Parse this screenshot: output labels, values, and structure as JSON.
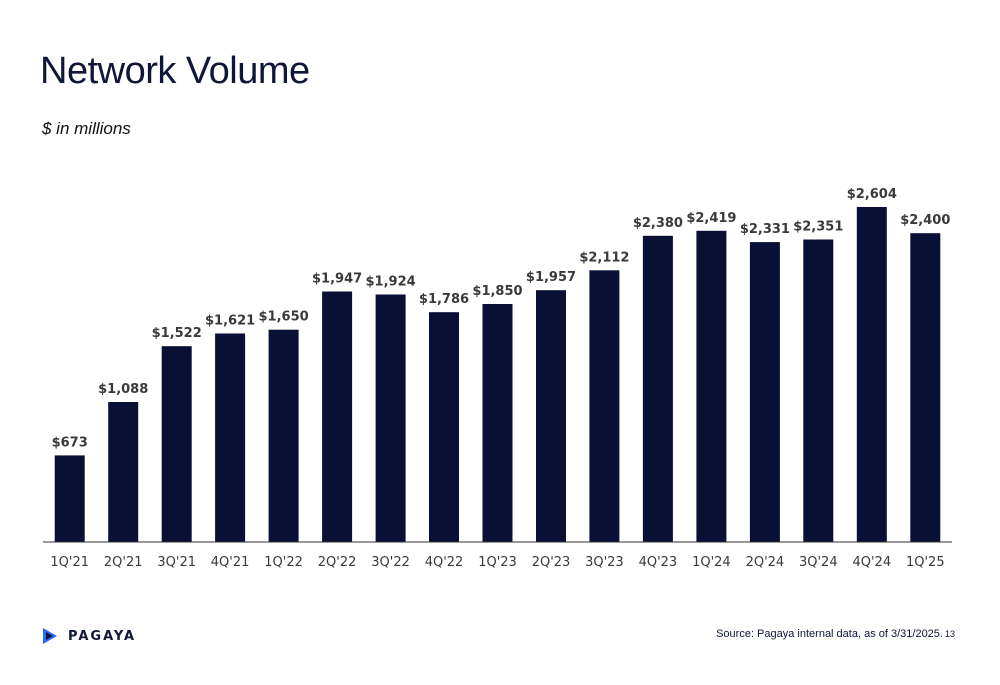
{
  "slide": {
    "title": "Network Volume",
    "subtitle": "$ in millions",
    "source": "Source: Pagaya internal data, as of 3/31/2025.",
    "page_number": "13",
    "logo_text": "PAGAYA"
  },
  "colors": {
    "bar": "#0a0f36",
    "axis": "#333333",
    "logo_accent": "#2a6cf6"
  },
  "chart_data": {
    "type": "bar",
    "title": "Network Volume",
    "ylabel": "$ in millions",
    "categories": [
      "1Q'21",
      "2Q'21",
      "3Q'21",
      "4Q'21",
      "1Q'22",
      "2Q'22",
      "3Q'22",
      "4Q'22",
      "1Q'23",
      "2Q'23",
      "3Q'23",
      "4Q'23",
      "1Q'24",
      "2Q'24",
      "3Q'24",
      "4Q'24",
      "1Q'25"
    ],
    "values": [
      673,
      1088,
      1522,
      1621,
      1650,
      1947,
      1924,
      1786,
      1850,
      1957,
      2112,
      2380,
      2419,
      2331,
      2351,
      2604,
      2400
    ],
    "labels": [
      "$673",
      "$1,088",
      "$1,522",
      "$1,621",
      "$1,650",
      "$1,947",
      "$1,924",
      "$1,786",
      "$1,850",
      "$1,957",
      "$2,112",
      "$2,380",
      "$2,419",
      "$2,331",
      "$2,351",
      "$2,604",
      "$2,400"
    ],
    "ylim": [
      0,
      2604
    ],
    "grid": false,
    "legend": "none"
  }
}
